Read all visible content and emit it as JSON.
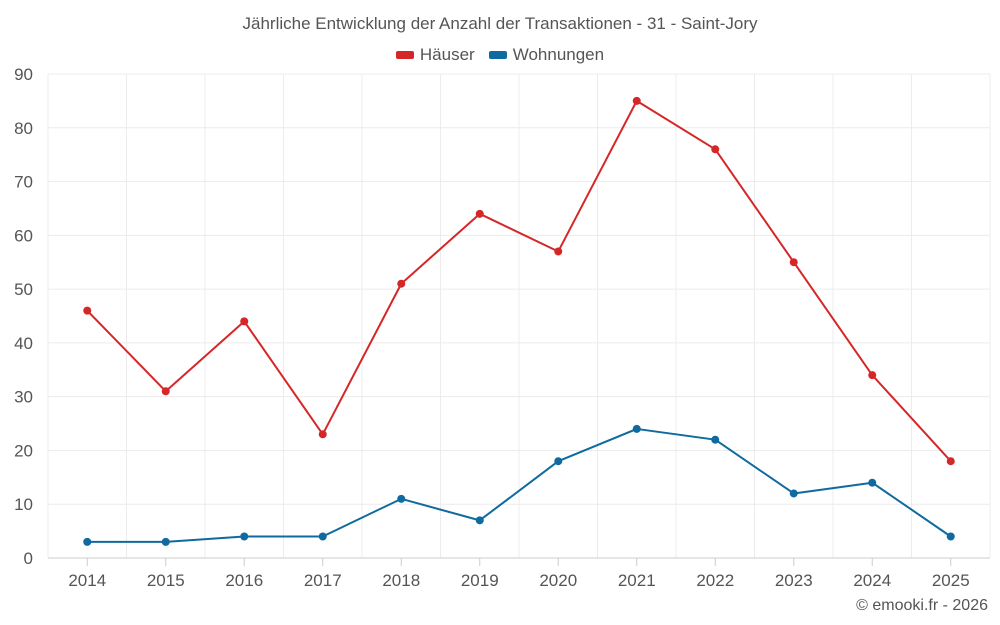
{
  "chart_data": {
    "type": "line",
    "title": "Jährliche Entwicklung der Anzahl der Transaktionen - 31 - Saint-Jory",
    "categories": [
      "2014",
      "2015",
      "2016",
      "2017",
      "2018",
      "2019",
      "2020",
      "2021",
      "2022",
      "2023",
      "2024",
      "2025"
    ],
    "series": [
      {
        "name": "Häuser",
        "color": "#d62728",
        "values": [
          46,
          31,
          44,
          23,
          51,
          64,
          57,
          85,
          76,
          55,
          34,
          18
        ]
      },
      {
        "name": "Wohnungen",
        "color": "#0f6aa0",
        "values": [
          3,
          3,
          4,
          4,
          11,
          7,
          18,
          24,
          22,
          12,
          14,
          4
        ]
      }
    ],
    "ylim": [
      0,
      90
    ],
    "yticks": [
      "0",
      "10",
      "20",
      "30",
      "40",
      "50",
      "60",
      "70",
      "80",
      "90"
    ],
    "xlabel": "",
    "ylabel": "",
    "grid": true,
    "legend_position": "top-center"
  },
  "credits": "© emooki.fr - 2026"
}
